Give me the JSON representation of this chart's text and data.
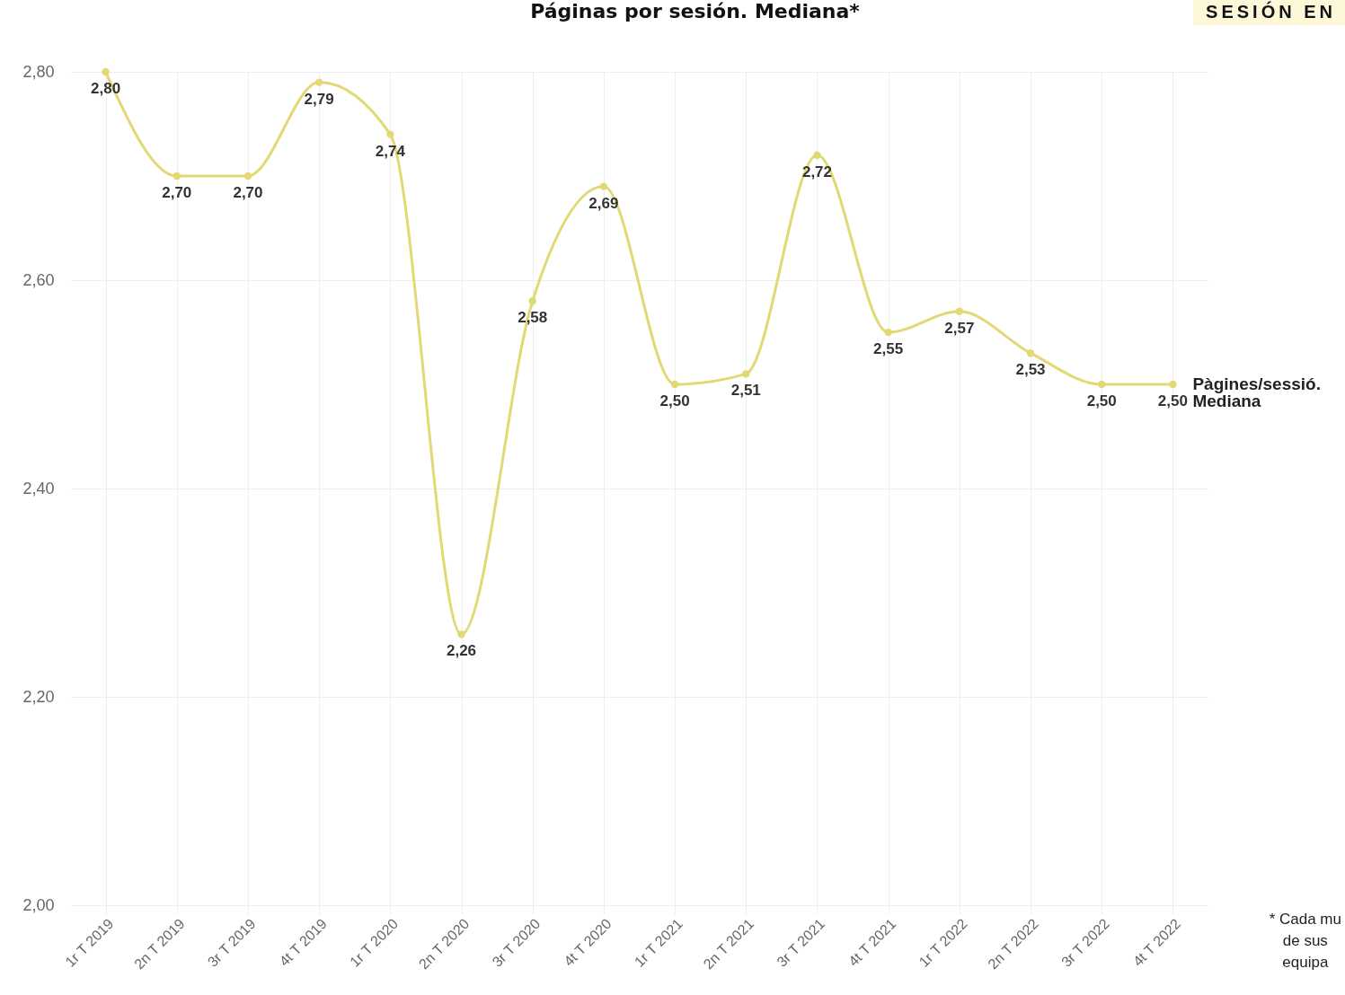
{
  "chart_data": {
    "type": "line",
    "title": "Páginas por sesión. Mediana*",
    "categories": [
      "1r T 2019",
      "2n T 2019",
      "3r T 2019",
      "4t T 2019",
      "1r T 2020",
      "2n T 2020",
      "3r T 2020",
      "4t T 2020",
      "1r T 2021",
      "2n T 2021",
      "3r T 2021",
      "4t T 2021",
      "1r T 2022",
      "2n T 2022",
      "3r T 2022",
      "4t T 2022"
    ],
    "series": [
      {
        "name": "Pàgines/sessió. Mediana",
        "color": "#e2d874",
        "values": [
          2.8,
          2.7,
          2.7,
          2.79,
          2.74,
          2.26,
          2.58,
          2.69,
          2.5,
          2.51,
          2.72,
          2.55,
          2.57,
          2.53,
          2.5,
          2.5
        ],
        "value_labels": [
          "2,80",
          "2,70",
          "2,70",
          "2,79",
          "2,74",
          "2,26",
          "2,58",
          "2,69",
          "2,50",
          "2,51",
          "2,72",
          "2,55",
          "2,57",
          "2,53",
          "2,50",
          "2,50"
        ]
      }
    ],
    "ylim": [
      2.0,
      2.8
    ],
    "yticks": [
      {
        "value": 2.0,
        "label": "2,00"
      },
      {
        "value": 2.2,
        "label": "2,20"
      },
      {
        "value": 2.4,
        "label": "2,40"
      },
      {
        "value": 2.6,
        "label": "2,60"
      },
      {
        "value": 2.8,
        "label": "2,80"
      }
    ],
    "grid": true,
    "marker": "circle",
    "line_style": "solid",
    "annotations": [
      "SESIÓN EN",
      "* Cada mu",
      "de sus",
      "equipa"
    ]
  }
}
